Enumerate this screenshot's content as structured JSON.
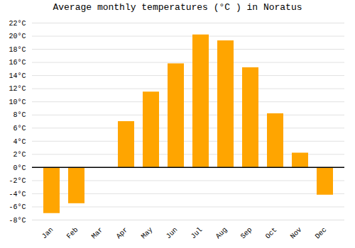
{
  "chart_data": {
    "type": "bar",
    "title": "Average monthly temperatures (°C ) in Noratus",
    "categories": [
      "Jan",
      "Feb",
      "Mar",
      "Apr",
      "May",
      "Jun",
      "Jul",
      "Aug",
      "Sep",
      "Oct",
      "Nov",
      "Dec"
    ],
    "values": [
      -7,
      -5.5,
      0,
      7,
      11.5,
      15.8,
      20.2,
      19.3,
      15.2,
      8.2,
      2.2,
      -4.2
    ],
    "color": "#FFA500",
    "ylim": [
      -8,
      22
    ],
    "yticks": [
      {
        "value": -8,
        "label": "-8°C"
      },
      {
        "value": -6,
        "label": "-6°C"
      },
      {
        "value": -4,
        "label": "-4°C"
      },
      {
        "value": -2,
        "label": "-2°C"
      },
      {
        "value": 0,
        "label": "0°C"
      },
      {
        "value": 2,
        "label": "2°C"
      },
      {
        "value": 4,
        "label": "4°C"
      },
      {
        "value": 6,
        "label": "6°C"
      },
      {
        "value": 8,
        "label": "8°C"
      },
      {
        "value": 10,
        "label": "10°C"
      },
      {
        "value": 12,
        "label": "12°C"
      },
      {
        "value": 14,
        "label": "14°C"
      },
      {
        "value": 16,
        "label": "16°C"
      },
      {
        "value": 18,
        "label": "18°C"
      },
      {
        "value": 20,
        "label": "20°C"
      },
      {
        "value": 22,
        "label": "22°C"
      }
    ],
    "grid": true
  }
}
